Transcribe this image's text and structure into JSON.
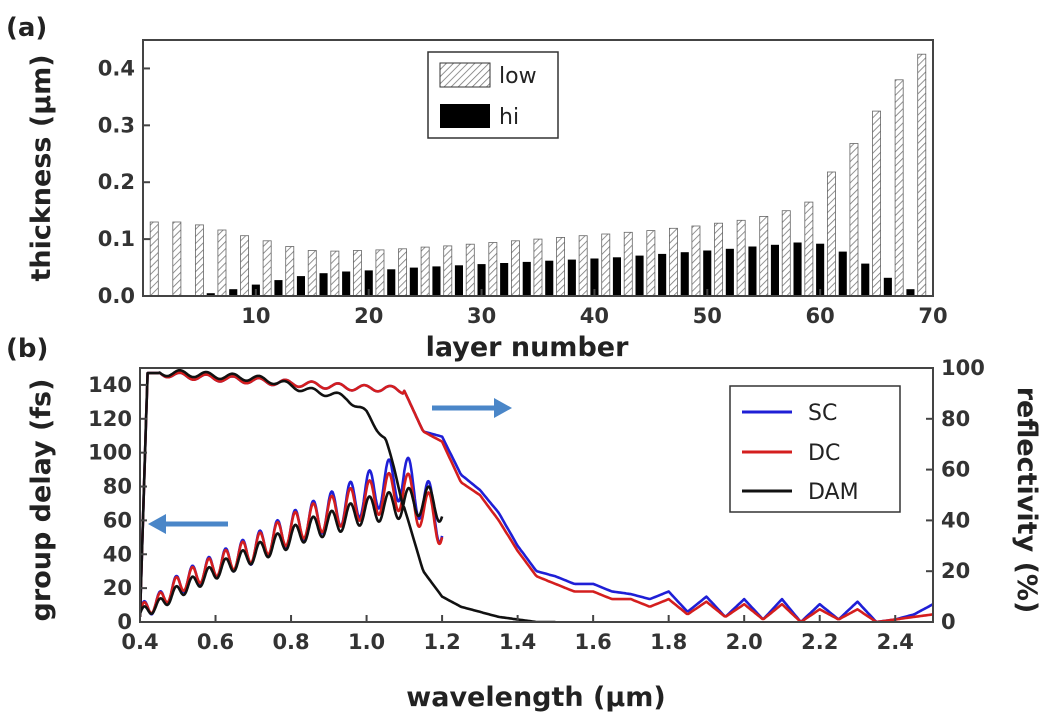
{
  "chart_data": [
    {
      "panel_label": "(a)",
      "type": "bar",
      "xlabel": "layer number",
      "ylabel": "thickness (µm)",
      "xlim": [
        0,
        70
      ],
      "ylim": [
        0,
        0.45
      ],
      "xticks": [
        "10",
        "20",
        "30",
        "40",
        "50",
        "60",
        "70"
      ],
      "yticks": [
        "0.0",
        "0.1",
        "0.2",
        "0.3",
        "0.4"
      ],
      "legend_position": "top-center",
      "series": [
        {
          "name": "low",
          "style": "hatched",
          "x": [
            1,
            3,
            5,
            7,
            9,
            11,
            13,
            15,
            17,
            19,
            21,
            23,
            25,
            27,
            29,
            31,
            33,
            35,
            37,
            39,
            41,
            43,
            45,
            47,
            49,
            51,
            53,
            55,
            57,
            59,
            61,
            63,
            65,
            67,
            69
          ],
          "values": [
            0.13,
            0.13,
            0.125,
            0.116,
            0.106,
            0.097,
            0.087,
            0.08,
            0.079,
            0.08,
            0.081,
            0.083,
            0.086,
            0.088,
            0.091,
            0.094,
            0.097,
            0.1,
            0.103,
            0.106,
            0.109,
            0.112,
            0.115,
            0.119,
            0.123,
            0.128,
            0.133,
            0.14,
            0.15,
            0.165,
            0.218,
            0.268,
            0.325,
            0.38,
            0.425
          ]
        },
        {
          "name": "hi",
          "style": "solid-black",
          "x": [
            2,
            4,
            6,
            8,
            10,
            12,
            14,
            16,
            18,
            20,
            22,
            24,
            26,
            28,
            30,
            32,
            34,
            36,
            38,
            40,
            42,
            44,
            46,
            48,
            50,
            52,
            54,
            56,
            58,
            60,
            62,
            64,
            66,
            68
          ],
          "values": [
            0.0,
            0.001,
            0.005,
            0.012,
            0.02,
            0.028,
            0.035,
            0.04,
            0.043,
            0.045,
            0.047,
            0.05,
            0.052,
            0.054,
            0.056,
            0.058,
            0.06,
            0.062,
            0.064,
            0.066,
            0.068,
            0.071,
            0.074,
            0.077,
            0.08,
            0.083,
            0.087,
            0.09,
            0.094,
            0.092,
            0.078,
            0.057,
            0.032,
            0.012
          ]
        }
      ]
    },
    {
      "panel_label": "(b)",
      "type": "line",
      "xlabel": "wavelength (µm)",
      "ylabel": "group delay (fs)",
      "ylabel_right": "reflectivity (%)",
      "xlim": [
        0.4,
        2.5
      ],
      "ylim": [
        0,
        150
      ],
      "ylim_right": [
        0,
        100
      ],
      "xticks": [
        "0.4",
        "0.6",
        "0.8",
        "1.0",
        "1.2",
        "1.4",
        "1.6",
        "1.8",
        "2.0",
        "2.2",
        "2.4"
      ],
      "yticks": [
        "0",
        "20",
        "40",
        "60",
        "80",
        "100",
        "120",
        "140"
      ],
      "yticks_right": [
        "0",
        "20",
        "40",
        "60",
        "80",
        "100"
      ],
      "legend_position": "top-right",
      "annotations": [
        {
          "type": "arrow",
          "direction": "left",
          "meaning": "group delay on left axis"
        },
        {
          "type": "arrow",
          "direction": "right",
          "meaning": "reflectivity on right axis"
        }
      ],
      "series": [
        {
          "name": "SC",
          "color": "#1f1fd6",
          "group_delay": {
            "x": [
              0.4,
              0.45,
              0.5,
              0.55,
              0.6,
              0.65,
              0.7,
              0.75,
              0.8,
              0.85,
              0.9,
              0.95,
              1.0,
              1.05,
              1.1,
              1.15,
              1.2
            ],
            "y": [
              6,
              12,
              22,
              28,
              33,
              38,
              43,
              49,
              55,
              60,
              65,
              70,
              76,
              82,
              86,
              72,
              60
            ],
            "ripple_peaks": [
              28,
              32,
              36,
              42,
              47,
              52,
              58,
              64,
              70,
              76,
              84,
              92,
              96
            ]
          },
          "reflectivity": {
            "x": [
              0.4,
              0.42,
              0.45,
              0.5,
              0.6,
              0.7,
              0.8,
              0.9,
              1.0,
              1.05,
              1.1,
              1.15,
              1.2,
              1.25,
              1.3,
              1.35,
              1.4,
              1.45,
              1.5,
              1.55,
              1.6,
              1.65,
              1.7,
              1.75,
              1.8,
              1.85,
              1.9,
              1.95,
              2.0,
              2.05,
              2.1,
              2.15,
              2.2,
              2.25,
              2.3,
              2.35,
              2.4,
              2.45,
              2.5
            ],
            "y": [
              2,
              98,
              98,
              97,
              96,
              95,
              94,
              93,
              92,
              92,
              91,
              75,
              73,
              58,
              52,
              43,
              30,
              20,
              18,
              15,
              15,
              12,
              11,
              9,
              12,
              4,
              10,
              2,
              9,
              1,
              9,
              0,
              7,
              1,
              8,
              0,
              1,
              3,
              7
            ]
          }
        },
        {
          "name": "DC",
          "color": "#d41e1e",
          "group_delay": {
            "x": [
              0.4,
              0.45,
              0.5,
              0.55,
              0.6,
              0.65,
              0.7,
              0.75,
              0.8,
              0.85,
              0.9,
              0.95,
              1.0,
              1.05,
              1.1,
              1.15,
              1.2
            ],
            "y": [
              6,
              12,
              22,
              28,
              33,
              38,
              43,
              49,
              55,
              60,
              64,
              68,
              72,
              76,
              78,
              66,
              58
            ]
          },
          "reflectivity": {
            "x": [
              0.4,
              0.42,
              0.45,
              0.5,
              0.6,
              0.7,
              0.8,
              0.9,
              1.0,
              1.05,
              1.1,
              1.15,
              1.2,
              1.25,
              1.3,
              1.35,
              1.4,
              1.45,
              1.5,
              1.55,
              1.6,
              1.65,
              1.7,
              1.75,
              1.8,
              1.85,
              1.9,
              1.95,
              2.0,
              2.05,
              2.1,
              2.15,
              2.2,
              2.25,
              2.3,
              2.35,
              2.4,
              2.45,
              2.5
            ],
            "y": [
              2,
              98,
              98,
              97,
              96,
              95,
              94,
              93,
              92,
              92,
              91,
              75,
              71,
              55,
              50,
              40,
              28,
              18,
              15,
              12,
              12,
              9,
              9,
              6,
              9,
              3,
              8,
              2,
              7,
              1,
              7,
              0,
              5,
              1,
              5,
              0,
              1,
              2,
              3
            ]
          }
        },
        {
          "name": "DAM",
          "color": "#111111",
          "group_delay": {
            "x": [
              0.4,
              0.45,
              0.5,
              0.55,
              0.6,
              0.65,
              0.7,
              0.75,
              0.8,
              0.85,
              0.9,
              0.95,
              1.0,
              1.05,
              1.1,
              1.15,
              1.2
            ],
            "y": [
              5,
              10,
              18,
              24,
              30,
              35,
              40,
              45,
              50,
              55,
              58,
              62,
              66,
              68,
              70,
              72,
              68
            ]
          },
          "reflectivity": {
            "x": [
              0.4,
              0.42,
              0.45,
              0.5,
              0.6,
              0.7,
              0.75,
              0.8,
              0.85,
              0.9,
              0.95,
              1.0,
              1.05,
              1.1,
              1.15,
              1.2,
              1.25,
              1.3,
              1.35,
              1.4,
              1.45,
              1.5
            ],
            "y": [
              2,
              98,
              98,
              98,
              97,
              96,
              95,
              93,
              91,
              90,
              88,
              82,
              72,
              45,
              20,
              10,
              6,
              4,
              2,
              1,
              0,
              0
            ]
          }
        }
      ]
    }
  ]
}
